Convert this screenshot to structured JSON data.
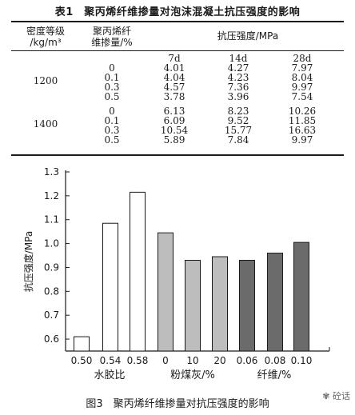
{
  "table": {
    "title": "表1　聚丙烯纤维掺量对泡沫混凝土抗压强度的影响",
    "header_density_line1": "密度等级",
    "header_density_line2": "/kg/m³",
    "header_fiber_line1": "聚丙烯纤",
    "header_fiber_line2": "维掺量/%",
    "header_strength": "抗压强度/MPa",
    "ages": [
      "7d",
      "14d",
      "28d"
    ],
    "groups": [
      {
        "density": "1200",
        "rows": [
          {
            "fiber": "0",
            "v7": "4.01",
            "v14": "4.27",
            "v28": "7.97"
          },
          {
            "fiber": "0.1",
            "v7": "4.04",
            "v14": "4.23",
            "v28": "8.04"
          },
          {
            "fiber": "0.3",
            "v7": "4.57",
            "v14": "7.36",
            "v28": "9.97"
          },
          {
            "fiber": "0.5",
            "v7": "3.78",
            "v14": "3.96",
            "v28": "7.54"
          }
        ]
      },
      {
        "density": "1400",
        "rows": [
          {
            "fiber": "0",
            "v7": "6.13",
            "v14": "8.23",
            "v28": "10.26"
          },
          {
            "fiber": "0.1",
            "v7": "6.09",
            "v14": "9.52",
            "v28": "11.85"
          },
          {
            "fiber": "0.3",
            "v7": "10.54",
            "v14": "15.77",
            "v28": "16.63"
          },
          {
            "fiber": "0.5",
            "v7": "5.89",
            "v14": "7.84",
            "v28": "9.97"
          }
        ]
      }
    ]
  },
  "figure": {
    "caption": "图3　聚丙烯纤维掺量对抗压强度的影响",
    "watermark": "砼话"
  },
  "chart_data": {
    "type": "bar",
    "ylabel": "抗压强度/MPa",
    "ylim": [
      0.55,
      1.3
    ],
    "yticks": [
      "0.6",
      "0.7",
      "0.8",
      "0.9",
      "1.0",
      "1.1",
      "1.2",
      "1.3"
    ],
    "yticks_values": [
      0.6,
      0.7,
      0.8,
      0.9,
      1.0,
      1.1,
      1.2,
      1.3
    ],
    "groups": [
      {
        "label": "水胶比",
        "color": "#ffffff",
        "categories": [
          "0.50",
          "0.54",
          "0.58"
        ],
        "values": [
          0.61,
          1.085,
          1.215
        ]
      },
      {
        "label": "粉煤灰/%",
        "color": "#bdbdbd",
        "categories": [
          "0",
          "10",
          "20"
        ],
        "values": [
          1.045,
          0.93,
          0.945
        ]
      },
      {
        "label": "纤维/%",
        "color": "#6b6b6b",
        "categories": [
          "0.06",
          "0.08",
          "0.10"
        ],
        "values": [
          0.93,
          0.96,
          1.005
        ]
      }
    ]
  }
}
